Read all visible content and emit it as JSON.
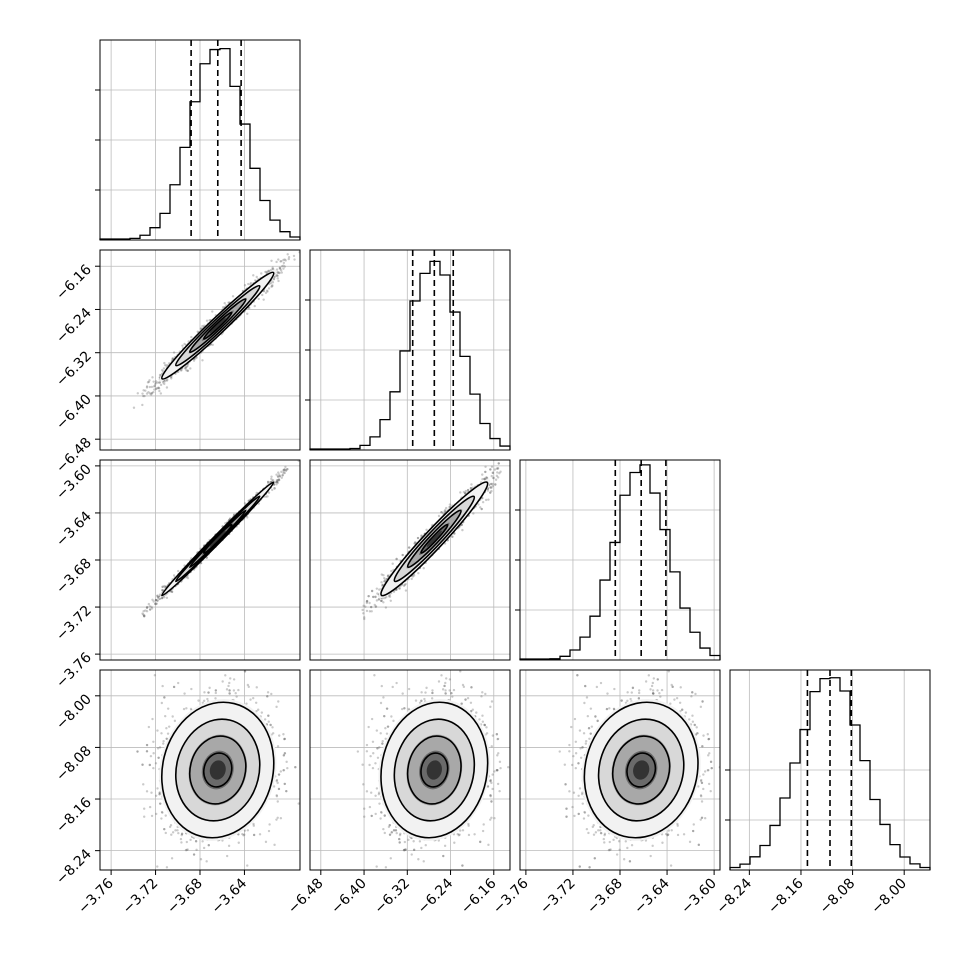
{
  "chart_data": {
    "type": "corner",
    "parameters": [
      {
        "range": [
          -3.77,
          -3.59
        ],
        "ticks": [
          -3.76,
          -3.72,
          -3.68,
          -3.64
        ],
        "mean": -3.664,
        "sd": 0.024,
        "quantiles": [
          -3.688,
          -3.664,
          -3.643
        ],
        "hist_peak": 4.0,
        "hist_yticks": [
          1,
          2,
          3
        ]
      },
      {
        "range": [
          -6.5,
          -6.13
        ],
        "ticks": [
          -6.48,
          -6.4,
          -6.32,
          -6.24,
          -6.16
        ],
        "mean": -6.27,
        "sd": 0.047,
        "quantiles": [
          -6.31,
          -6.27,
          -6.235
        ],
        "hist_peak": 4.0,
        "hist_yticks": [
          1,
          2,
          3
        ]
      },
      {
        "range": [
          -3.765,
          -3.595
        ],
        "ticks": [
          -3.76,
          -3.72,
          -3.68,
          -3.64,
          -3.6
        ],
        "mean": -3.662,
        "sd": 0.023,
        "quantiles": [
          -3.684,
          -3.662,
          -3.641
        ],
        "hist_peak": 4.0,
        "hist_yticks": [
          1,
          2,
          3
        ]
      },
      {
        "range": [
          -8.27,
          -7.96
        ],
        "ticks": [
          -8.24,
          -8.16,
          -8.08,
          -8.0
        ],
        "mean": -8.115,
        "sd": 0.05,
        "quantiles": [
          -8.15,
          -8.115,
          -8.082
        ],
        "hist_peak": 4.0,
        "hist_yticks": [
          1,
          2
        ]
      }
    ],
    "pair_correlations": [
      [
        1,
        0.98,
        0.995,
        0.1
      ],
      [
        0.98,
        1,
        0.97,
        0.1
      ],
      [
        0.995,
        0.97,
        1,
        0.1
      ],
      [
        0.1,
        0.1,
        0.1,
        1
      ]
    ],
    "contour_levels_sigma": [
      0.5,
      1.0,
      1.5,
      2.0
    ],
    "quantile_line_style": "dashed",
    "grid": true,
    "tick_label_rotation": 45
  }
}
